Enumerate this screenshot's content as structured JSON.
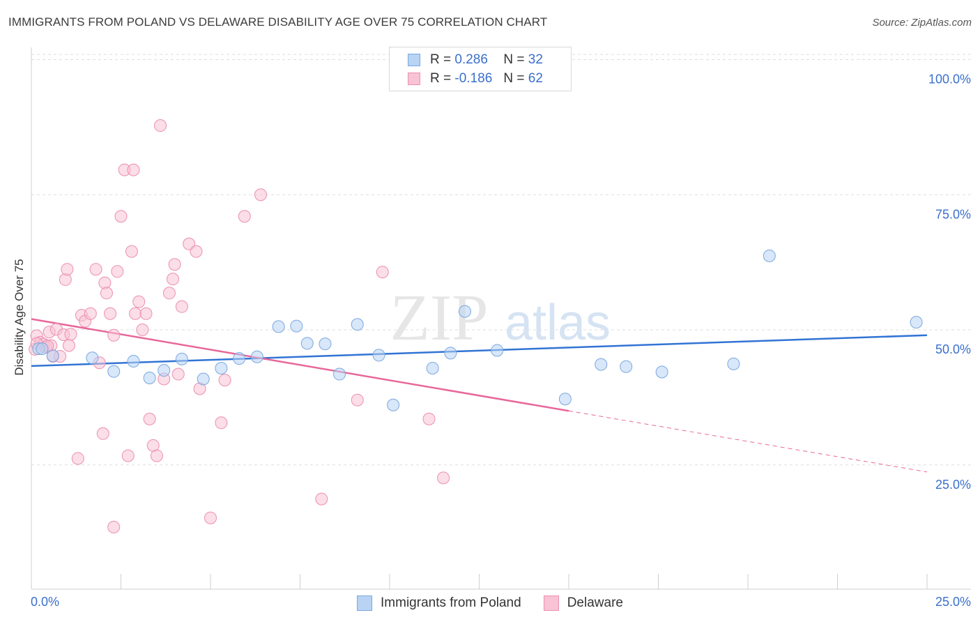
{
  "header": {
    "title": "IMMIGRANTS FROM POLAND VS DELAWARE DISABILITY AGE OVER 75 CORRELATION CHART",
    "source": "Source: ZipAtlas.com"
  },
  "watermark": {
    "part1": "ZIP",
    "part2": "atlas"
  },
  "legend": {
    "series1": {
      "r_label": "R =",
      "r_value": "0.286",
      "n_label": "N =",
      "n_value": "32"
    },
    "series2": {
      "r_label": "R =",
      "r_value": "-0.186",
      "n_label": "N =",
      "n_value": "62"
    }
  },
  "bottom_legend": {
    "series1": "Immigrants from Poland",
    "series2": "Delaware"
  },
  "colors": {
    "blue_fill": "#b8d3f4",
    "blue_stroke": "#7aa7e0",
    "blue_line": "#3174d4",
    "pink_fill": "#f8c3d4",
    "pink_stroke": "#ec8fb0",
    "pink_line": "#e8679a",
    "axis_label": "#3a6fcc",
    "grid": "#dddddd"
  },
  "chart_data": {
    "type": "scatter",
    "title": "IMMIGRANTS FROM POLAND VS DELAWARE DISABILITY AGE OVER 75 CORRELATION CHART",
    "xlabel": "",
    "ylabel": "Disability Age Over 75",
    "xlim": [
      0,
      25
    ],
    "ylim": [
      2,
      102
    ],
    "x_tick_labels": [
      "0.0%",
      "25.0%"
    ],
    "y_ticks": [
      25,
      50,
      75,
      100
    ],
    "y_tick_labels": [
      "25.0%",
      "50.0%",
      "75.0%",
      "100.0%"
    ],
    "grid": true,
    "series": [
      {
        "name": "Immigrants from Poland",
        "color": "#7aa7e0",
        "points": [
          [
            0.2,
            46.5
          ],
          [
            0.3,
            46.5
          ],
          [
            0.6,
            45.2
          ],
          [
            1.7,
            44.8
          ],
          [
            2.3,
            42.3
          ],
          [
            2.85,
            44.2
          ],
          [
            3.3,
            41.1
          ],
          [
            3.7,
            42.5
          ],
          [
            4.2,
            44.6
          ],
          [
            4.8,
            40.9
          ],
          [
            5.3,
            42.9
          ],
          [
            5.8,
            44.7
          ],
          [
            6.3,
            45.0
          ],
          [
            6.9,
            50.6
          ],
          [
            7.4,
            50.7
          ],
          [
            7.7,
            47.5
          ],
          [
            8.2,
            47.4
          ],
          [
            8.6,
            41.8
          ],
          [
            9.1,
            51.0
          ],
          [
            9.7,
            45.3
          ],
          [
            10.1,
            36.1
          ],
          [
            11.2,
            42.9
          ],
          [
            11.7,
            45.7
          ],
          [
            12.1,
            53.4
          ],
          [
            13.0,
            46.2
          ],
          [
            14.9,
            37.2
          ],
          [
            15.9,
            43.6
          ],
          [
            16.6,
            43.2
          ],
          [
            17.6,
            42.2
          ],
          [
            19.6,
            43.7
          ],
          [
            20.6,
            63.7
          ],
          [
            24.7,
            51.4
          ]
        ],
        "trend": {
          "x": [
            0,
            25
          ],
          "y": [
            43.3,
            49.0
          ]
        }
      },
      {
        "name": "Delaware",
        "color": "#ec8fb0",
        "points": [
          [
            0.1,
            46.4
          ],
          [
            0.15,
            48.9
          ],
          [
            0.25,
            47.7
          ],
          [
            0.35,
            47.3
          ],
          [
            0.4,
            46.8
          ],
          [
            0.5,
            49.6
          ],
          [
            0.55,
            47.1
          ],
          [
            0.6,
            45.1
          ],
          [
            0.7,
            50.1
          ],
          [
            0.8,
            45.1
          ],
          [
            0.9,
            49.1
          ],
          [
            0.95,
            59.3
          ],
          [
            1.0,
            61.2
          ],
          [
            1.05,
            47.1
          ],
          [
            1.1,
            49.2
          ],
          [
            1.3,
            26.2
          ],
          [
            1.4,
            52.7
          ],
          [
            1.5,
            51.6
          ],
          [
            1.65,
            53.0
          ],
          [
            1.8,
            61.2
          ],
          [
            1.9,
            43.9
          ],
          [
            2.0,
            30.8
          ],
          [
            2.05,
            58.7
          ],
          [
            2.1,
            56.8
          ],
          [
            2.2,
            53.0
          ],
          [
            2.3,
            49.0
          ],
          [
            2.4,
            60.8
          ],
          [
            2.5,
            71.0
          ],
          [
            2.6,
            79.6
          ],
          [
            2.7,
            26.7
          ],
          [
            2.8,
            64.5
          ],
          [
            2.85,
            79.6
          ],
          [
            2.9,
            53.0
          ],
          [
            3.0,
            55.2
          ],
          [
            3.1,
            50.0
          ],
          [
            3.2,
            53.0
          ],
          [
            3.3,
            33.5
          ],
          [
            3.4,
            28.6
          ],
          [
            3.5,
            26.7
          ],
          [
            3.6,
            87.8
          ],
          [
            3.7,
            40.9
          ],
          [
            3.85,
            56.8
          ],
          [
            3.95,
            59.4
          ],
          [
            4.0,
            62.1
          ],
          [
            4.1,
            41.8
          ],
          [
            4.2,
            54.3
          ],
          [
            4.4,
            65.9
          ],
          [
            4.6,
            64.5
          ],
          [
            4.7,
            39.1
          ],
          [
            5.0,
            15.2
          ],
          [
            5.3,
            32.8
          ],
          [
            5.4,
            40.7
          ],
          [
            5.95,
            71.0
          ],
          [
            6.4,
            75.0
          ],
          [
            8.1,
            18.7
          ],
          [
            9.1,
            37.0
          ],
          [
            9.8,
            60.7
          ],
          [
            11.1,
            33.5
          ],
          [
            11.5,
            22.6
          ],
          [
            2.3,
            13.5
          ],
          [
            0.15,
            47.5
          ],
          [
            0.45,
            47.0
          ]
        ],
        "trend": {
          "x": [
            0,
            15.0
          ],
          "y": [
            52.0,
            35.0
          ],
          "dashed_x": [
            15.0,
            25
          ],
          "dashed_y": [
            35.0,
            23.7
          ]
        }
      }
    ]
  }
}
